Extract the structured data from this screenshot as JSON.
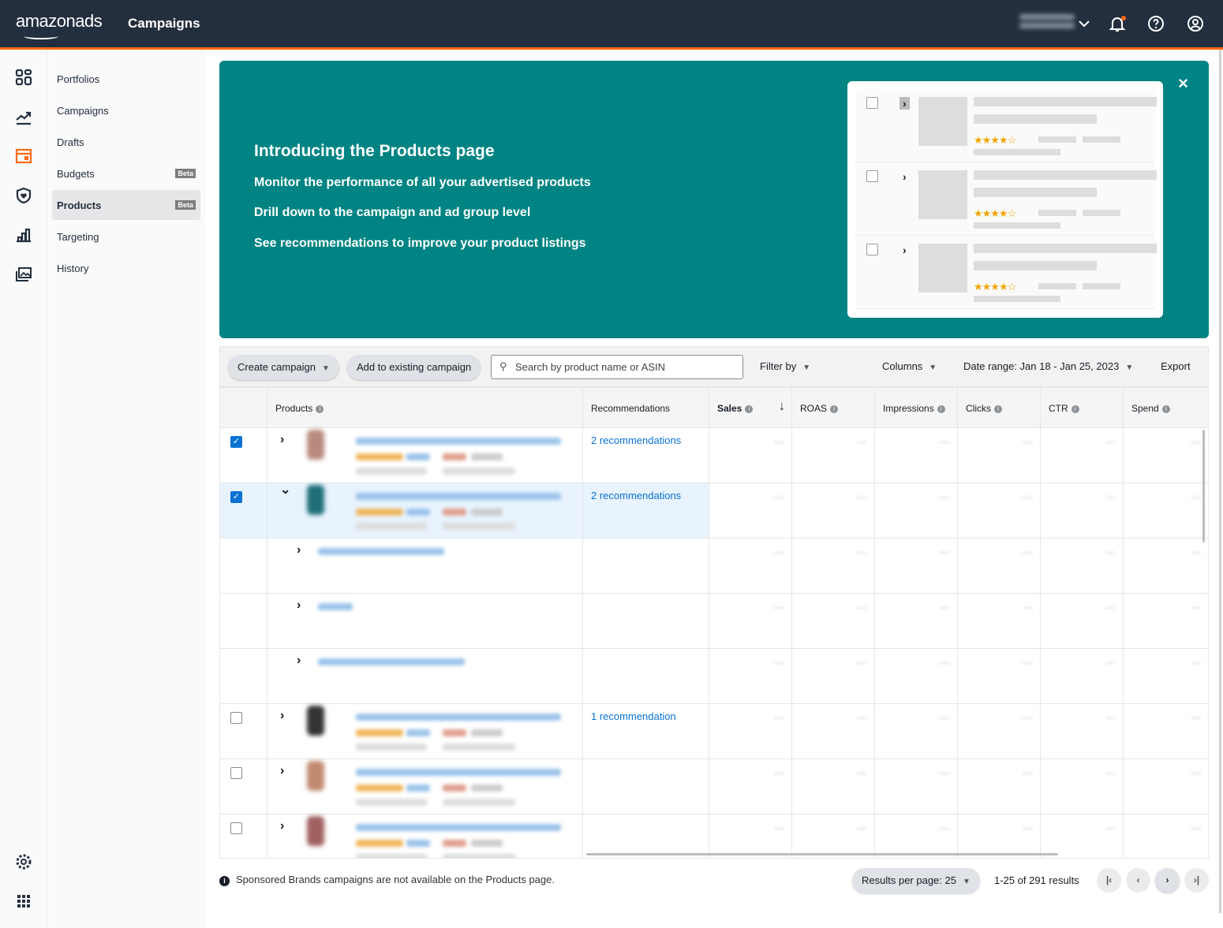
{
  "header": {
    "logo": "amazonads",
    "title": "Campaigns",
    "icons": [
      "chevron-down-icon",
      "bell-icon",
      "help-icon",
      "account-icon"
    ],
    "notification_color": "#ff6a13"
  },
  "rail": {
    "icons": [
      "dashboard-icon",
      "trend-icon",
      "campaign-manager-icon",
      "brand-shield-icon",
      "reports-icon",
      "media-icon",
      "settings-icon",
      "apps-grid-icon"
    ],
    "active_color": "#ff6a13"
  },
  "nav": {
    "items": [
      {
        "label": "Portfolios"
      },
      {
        "label": "Campaigns"
      },
      {
        "label": "Drafts"
      },
      {
        "label": "Budgets",
        "badge": "Beta"
      },
      {
        "label": "Products",
        "badge": "Beta",
        "active": true
      },
      {
        "label": "Targeting"
      },
      {
        "label": "History"
      }
    ]
  },
  "banner": {
    "title": "Introducing the Products page",
    "lines": [
      "Monitor the performance of all your advertised products",
      "Drill down to the campaign and ad group level",
      "See recommendations to improve your product listings"
    ],
    "close": "×",
    "color": "#008483"
  },
  "toolbar": {
    "create_campaign": "Create campaign",
    "add_existing": "Add to existing campaign",
    "search_placeholder": "Search by product name or ASIN",
    "filter_by": "Filter by",
    "columns": "Columns",
    "date_range": "Date range: Jan 18 - Jan 25, 2023",
    "export": "Export"
  },
  "table": {
    "columns": [
      "Products",
      "Recommendations",
      "Sales",
      "ROAS",
      "Impressions",
      "Clicks",
      "CTR",
      "Spend"
    ],
    "sort_column": "Sales",
    "sort_direction": "descending",
    "metric_placeholder": "—",
    "rows": [
      {
        "type": "product",
        "checked": true,
        "expanded": false,
        "recommendation": "2 recommendations"
      },
      {
        "type": "product",
        "checked": true,
        "expanded": true,
        "recommendation": "2 recommendations"
      },
      {
        "type": "child",
        "recommendation": ""
      },
      {
        "type": "child",
        "recommendation": ""
      },
      {
        "type": "child",
        "recommendation": ""
      },
      {
        "type": "product",
        "checked": false,
        "expanded": false,
        "recommendation": "1 recommendation"
      },
      {
        "type": "product",
        "checked": false,
        "expanded": false,
        "recommendation": ""
      },
      {
        "type": "product",
        "checked": false,
        "expanded": false,
        "recommendation": ""
      }
    ]
  },
  "footer": {
    "note": "Sponsored Brands campaigns are not available on the Products page.",
    "results_per_page": "Results per page: 25",
    "count": "1-25 of 291 results"
  }
}
